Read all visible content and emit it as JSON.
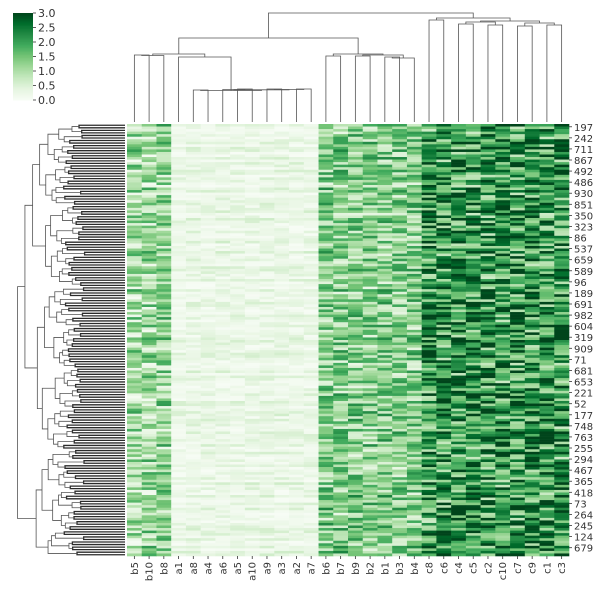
{
  "chart_data": {
    "type": "heatmap",
    "subtype": "clustermap",
    "colormap": "Greens",
    "color_range": [
      0.0,
      3.0
    ],
    "colorbar": {
      "ticks": [
        "3.0",
        "2.5",
        "2.0",
        "1.5",
        "1.0",
        "0.5",
        "0.0"
      ],
      "tick_values": [
        3.0,
        2.5,
        2.0,
        1.5,
        1.0,
        0.5,
        0.0
      ]
    },
    "columns": [
      "b5",
      "b10",
      "b8",
      "a1",
      "a8",
      "a4",
      "a6",
      "a5",
      "a10",
      "a9",
      "a3",
      "a2",
      "a7",
      "b6",
      "b7",
      "b9",
      "b2",
      "b1",
      "b3",
      "b4",
      "c8",
      "c6",
      "c4",
      "c5",
      "c2",
      "c10",
      "c7",
      "c9",
      "c1",
      "c3"
    ],
    "row_labels_shown": [
      "197",
      "242",
      "711",
      "867",
      "492",
      "486",
      "930",
      "851",
      "350",
      "323",
      "86",
      "537",
      "659",
      "589",
      "96",
      "189",
      "691",
      "982",
      "604",
      "319",
      "909",
      "71",
      "681",
      "653",
      "221",
      "52",
      "177",
      "748",
      "763",
      "255",
      "294",
      "467",
      "365",
      "418",
      "73",
      "264",
      "245",
      "124",
      "679"
    ],
    "column_mean_level": [
      1.05,
      1.05,
      1.2,
      0.2,
      0.25,
      0.25,
      0.25,
      0.25,
      0.25,
      0.25,
      0.25,
      0.25,
      0.25,
      1.3,
      1.3,
      1.3,
      1.3,
      1.3,
      1.3,
      1.3,
      2.1,
      2.1,
      2.1,
      2.1,
      2.1,
      2.1,
      2.1,
      2.1,
      2.1,
      2.1
    ],
    "row_dendrogram": true,
    "col_dendrogram": true
  }
}
